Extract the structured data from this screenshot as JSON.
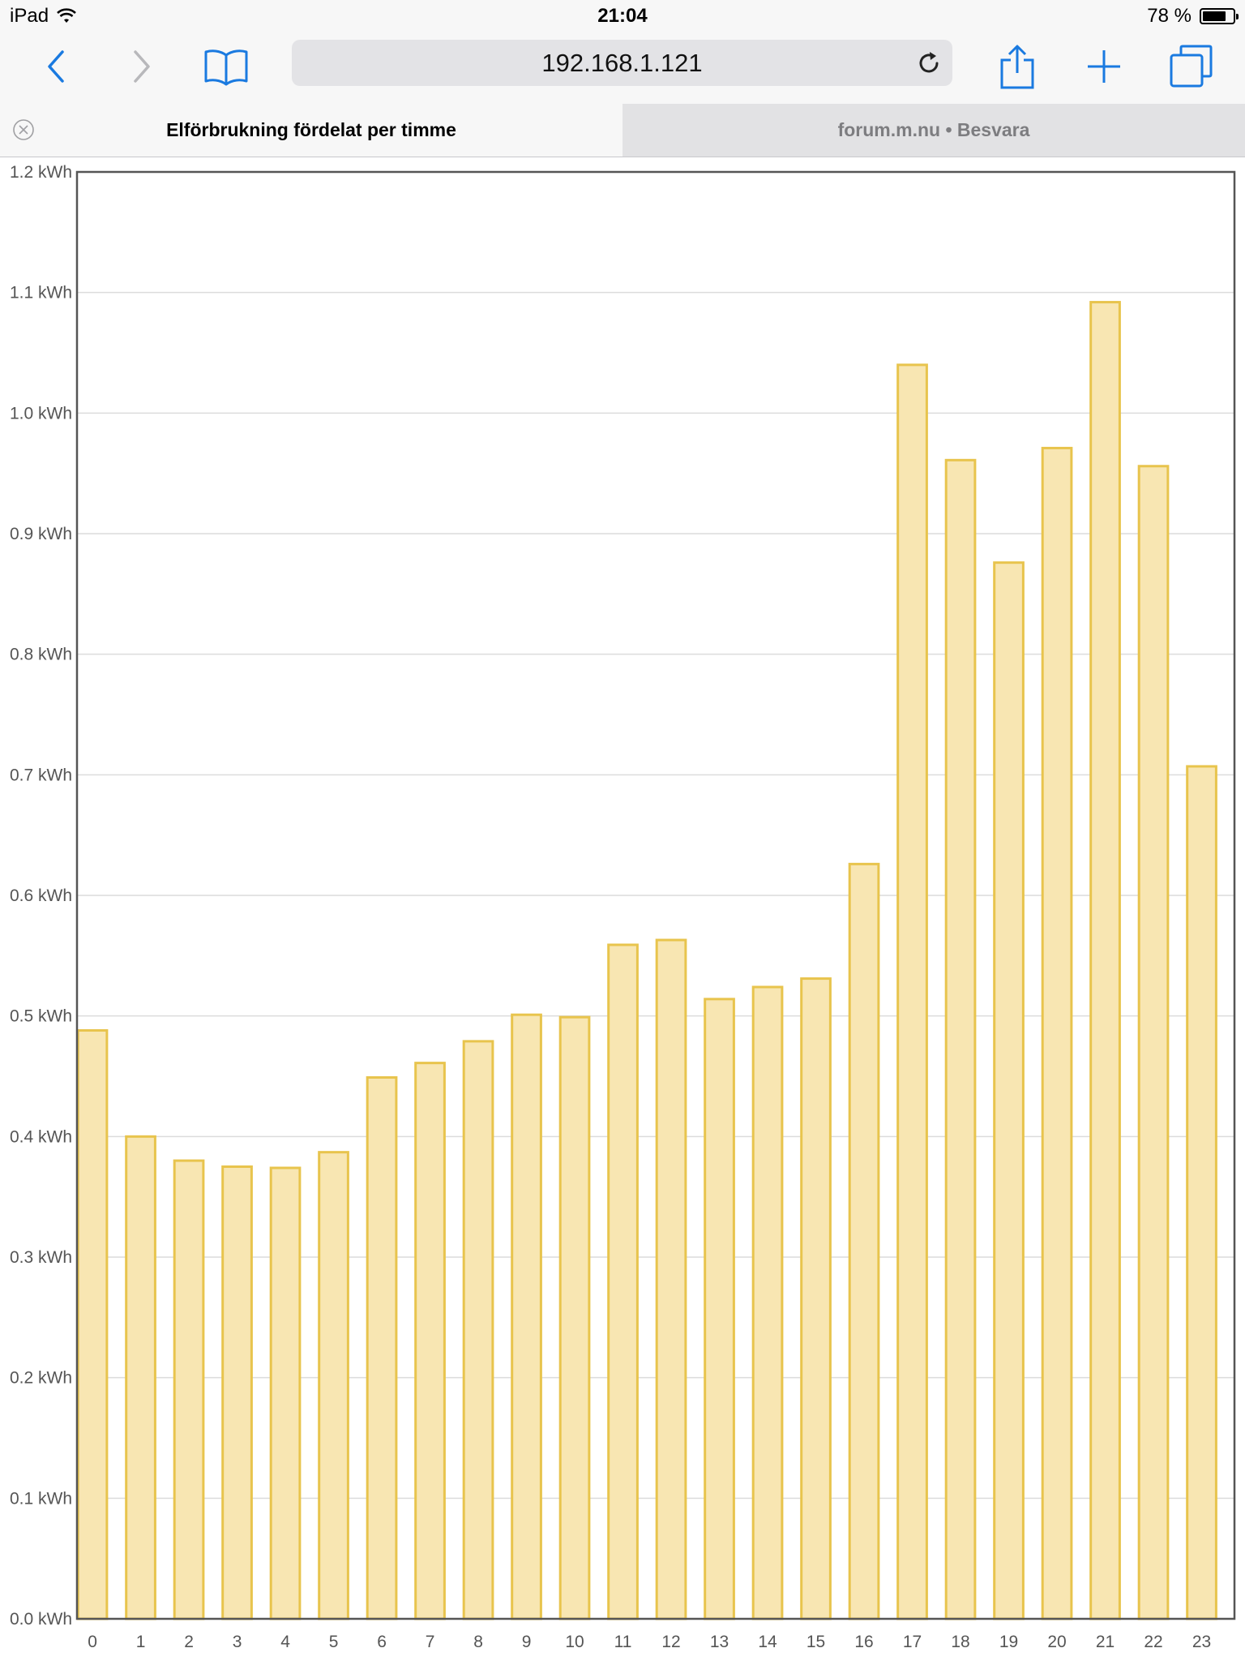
{
  "status_bar": {
    "device": "iPad",
    "time": "21:04",
    "battery": "78 %",
    "battery_level": 0.78
  },
  "browser": {
    "url": "192.168.1.121",
    "icons": [
      "back-icon",
      "forward-icon",
      "bookmarks-icon",
      "reload-icon",
      "share-icon",
      "add-icon",
      "tabs-icon"
    ],
    "accent_color": "#1a7ae0"
  },
  "tabs": [
    {
      "label": "Elförbrukning fördelat per timme",
      "active": true
    },
    {
      "label": "forum.m.nu • Besvara",
      "active": false
    }
  ],
  "chart_data": {
    "type": "bar",
    "categories": [
      "0",
      "1",
      "2",
      "3",
      "4",
      "5",
      "6",
      "7",
      "8",
      "9",
      "10",
      "11",
      "12",
      "13",
      "14",
      "15",
      "16",
      "17",
      "18",
      "19",
      "20",
      "21",
      "22",
      "23"
    ],
    "values": [
      0.488,
      0.4,
      0.38,
      0.375,
      0.374,
      0.387,
      0.449,
      0.461,
      0.479,
      0.501,
      0.499,
      0.559,
      0.563,
      0.514,
      0.524,
      0.531,
      0.626,
      1.04,
      0.961,
      0.876,
      0.971,
      1.092,
      0.956,
      0.707
    ],
    "ylim": [
      0,
      1.2
    ],
    "yticks": [
      "0.0 kWh",
      "0.1 kWh",
      "0.2 kWh",
      "0.3 kWh",
      "0.4 kWh",
      "0.5 kWh",
      "0.6 kWh",
      "0.7 kWh",
      "0.8 kWh",
      "0.9 kWh",
      "1.0 kWh",
      "1.1 kWh",
      "1.2 kWh"
    ],
    "grid": true,
    "bar_fill": "#f8e6b2",
    "bar_stroke": "#e8c44d"
  }
}
